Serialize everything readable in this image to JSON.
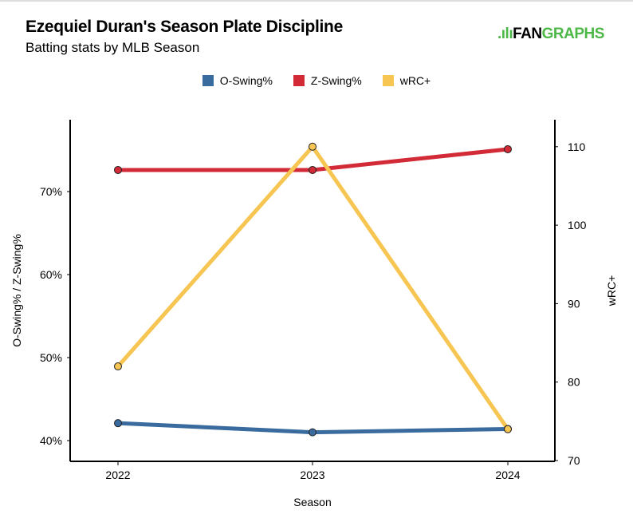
{
  "title": "Ezequiel Duran's Season Plate Discipline",
  "subtitle": "Batting stats by MLB Season",
  "logo": {
    "prefix": "FAN",
    "suffix": "GRAPHS"
  },
  "colors": {
    "O-Swing%": "#3a6b9f",
    "Z-Swing%": "#d22a36",
    "wRC+": "#f7c552",
    "logo_green": "#4db848"
  },
  "chart_data": {
    "type": "line",
    "categories": [
      "2022",
      "2023",
      "2024"
    ],
    "xlabel": "Season",
    "ylabel_left": "O-Swing% / Z-Swing%",
    "ylabel_right": "wRC+",
    "ylim_left": [
      38.5,
      80
    ],
    "ylim_right": [
      70,
      114.5
    ],
    "yticks_left": [
      "40%",
      "50%",
      "60%",
      "70%"
    ],
    "yticks_left_values": [
      40,
      50,
      60,
      70
    ],
    "yticks_right": [
      "70",
      "80",
      "90",
      "100",
      "110"
    ],
    "yticks_right_values": [
      70,
      80,
      90,
      100,
      110
    ],
    "legend_position": "top",
    "grid": false,
    "series": [
      {
        "name": "O-Swing%",
        "axis": "left",
        "values": [
          42.1,
          41.0,
          41.4
        ]
      },
      {
        "name": "Z-Swing%",
        "axis": "left",
        "values": [
          72.6,
          72.6,
          75.1
        ]
      },
      {
        "name": "wRC+",
        "axis": "right",
        "values": [
          82,
          110,
          74
        ]
      }
    ]
  }
}
